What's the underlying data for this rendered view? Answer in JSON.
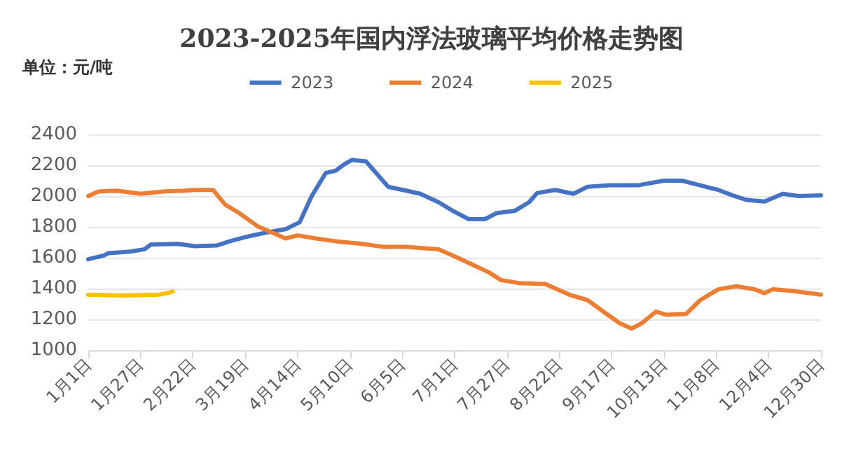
{
  "chart_data": {
    "type": "line",
    "title": "2023-2025年国内浮法玻璃平均价格走势图",
    "annotations": [
      "单位：元/吨"
    ],
    "xlim": [
      "--01-01",
      "--12-30"
    ],
    "xticks": [
      {
        "value": "--01-01",
        "label": "1月1日"
      },
      {
        "value": "--01-27",
        "label": "1月27日"
      },
      {
        "value": "--02-22",
        "label": "2月22日"
      },
      {
        "value": "--03-19",
        "label": "3月19日"
      },
      {
        "value": "--04-14",
        "label": "4月14日"
      },
      {
        "value": "--05-10",
        "label": "5月10日"
      },
      {
        "value": "--06-05",
        "label": "6月5日"
      },
      {
        "value": "--07-01",
        "label": "7月1日"
      },
      {
        "value": "--07-27",
        "label": "7月27日"
      },
      {
        "value": "--08-22",
        "label": "8月22日"
      },
      {
        "value": "--09-17",
        "label": "9月17日"
      },
      {
        "value": "--10-13",
        "label": "10月13日"
      },
      {
        "value": "--11-08",
        "label": "11月8日"
      },
      {
        "value": "--12-04",
        "label": "12月4日"
      },
      {
        "value": "--12-30",
        "label": "12月30日"
      }
    ],
    "ylim": [
      1000,
      2400
    ],
    "yticks": [
      1000,
      1200,
      1400,
      1600,
      1800,
      2000,
      2200,
      2400
    ],
    "grid": "y",
    "legend": "top",
    "marker": "none",
    "line_style": "solid",
    "series": [
      {
        "name": "2023",
        "color": "#4472c4",
        "x": [
          "--01-01",
          "--01-09",
          "--01-11",
          "--01-22",
          "--01-29",
          "--02-01",
          "--02-14",
          "--02-23",
          "--03-05",
          "--03-12",
          "--03-21",
          "--03-30",
          "--04-08",
          "--04-15",
          "--04-21",
          "--04-28",
          "--05-03",
          "--05-07",
          "--05-11",
          "--05-18",
          "--05-22",
          "--05-29",
          "--06-07",
          "--06-14",
          "--06-23",
          "--06-30",
          "--07-08",
          "--07-16",
          "--07-22",
          "--07-31",
          "--08-07",
          "--08-11",
          "--08-20",
          "--08-29",
          "--09-05",
          "--09-16",
          "--09-30",
          "--10-13",
          "--10-22",
          "--10-31",
          "--11-09",
          "--11-16",
          "--11-23",
          "--12-02",
          "--12-11",
          "--12-19",
          "--12-30"
        ],
        "values": [
          1590,
          1615,
          1630,
          1640,
          1655,
          1685,
          1690,
          1675,
          1680,
          1710,
          1740,
          1765,
          1785,
          1830,
          2000,
          2150,
          2165,
          2205,
          2235,
          2225,
          2165,
          2060,
          2035,
          2015,
          1960,
          1905,
          1850,
          1850,
          1890,
          1905,
          1960,
          2020,
          2040,
          2015,
          2060,
          2070,
          2070,
          2100,
          2100,
          2070,
          2040,
          2005,
          1975,
          1965,
          2015,
          2000,
          2005
        ]
      },
      {
        "name": "2024",
        "color": "#ed7d31",
        "x": [
          "--01-01",
          "--01-06",
          "--01-15",
          "--01-27",
          "--02-07",
          "--02-18",
          "--02-23",
          "--03-03",
          "--03-09",
          "--03-16",
          "--03-25",
          "--04-01",
          "--04-08",
          "--04-14",
          "--04-23",
          "--05-04",
          "--05-16",
          "--05-27",
          "--06-07",
          "--06-23",
          "--06-30",
          "--07-09",
          "--07-18",
          "--07-24",
          "--08-02",
          "--08-15",
          "--08-27",
          "--09-05",
          "--09-14",
          "--09-21",
          "--09-27",
          "--10-02",
          "--10-09",
          "--10-14",
          "--10-24",
          "--10-31",
          "--11-09",
          "--11-18",
          "--11-27",
          "--12-02",
          "--12-06",
          "--12-15",
          "--12-24",
          "--12-30"
        ],
        "values": [
          2000,
          2030,
          2035,
          2015,
          2030,
          2035,
          2040,
          2040,
          1945,
          1890,
          1805,
          1765,
          1725,
          1745,
          1725,
          1705,
          1690,
          1670,
          1670,
          1655,
          1615,
          1560,
          1505,
          1455,
          1435,
          1430,
          1360,
          1325,
          1240,
          1175,
          1140,
          1175,
          1250,
          1230,
          1235,
          1325,
          1395,
          1415,
          1395,
          1370,
          1395,
          1385,
          1370,
          1360
        ]
      },
      {
        "name": "2025",
        "color": "#ffc000",
        "x": [
          "--01-01",
          "--01-18",
          "--02-05",
          "--02-09",
          "--02-12"
        ],
        "values": [
          1360,
          1355,
          1360,
          1370,
          1380
        ]
      }
    ]
  }
}
